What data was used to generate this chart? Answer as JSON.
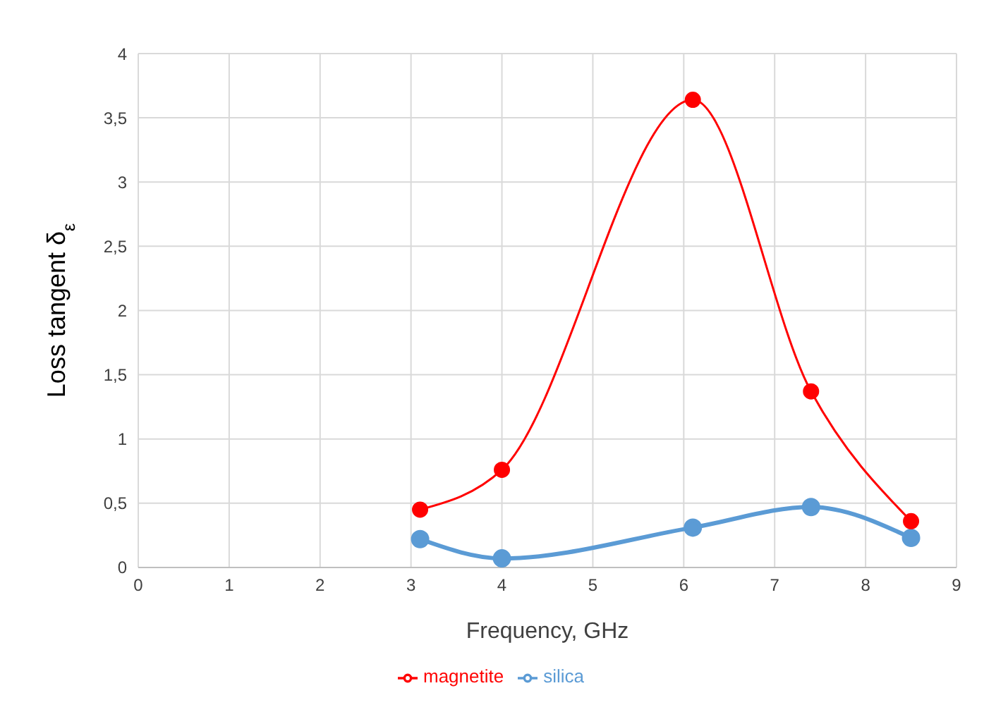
{
  "chart_data": {
    "type": "line",
    "xlabel": "Frequency, GHz",
    "ylabel": "Loss  tangent δ$_{ε}$",
    "x": [
      3.1,
      4,
      6.1,
      7.4,
      8.5
    ],
    "series": [
      {
        "name": "silica",
        "color": "#5b9bd5",
        "values": [
          0.22,
          0.07,
          0.31,
          0.47,
          0.23
        ]
      },
      {
        "name": "magnetite",
        "color": "#ff0000",
        "values": [
          0.45,
          0.76,
          3.64,
          1.37,
          0.36
        ]
      }
    ],
    "xlim": [
      0,
      9
    ],
    "xticks": [
      0,
      1,
      2,
      3,
      4,
      5,
      6,
      7,
      8,
      9
    ],
    "ylim": [
      0,
      4
    ],
    "yticks": [
      0,
      {
        "value": 0.5,
        "label": "0,5"
      },
      1,
      {
        "value": 1.5,
        "label": "1,5"
      },
      2,
      {
        "value": 2.5,
        "label": "2,5"
      },
      3,
      {
        "value": 3.5,
        "label": "3,5"
      },
      4
    ],
    "grid": true,
    "legend": "bottom",
    "marker": "circle",
    "line_style": "solid"
  }
}
